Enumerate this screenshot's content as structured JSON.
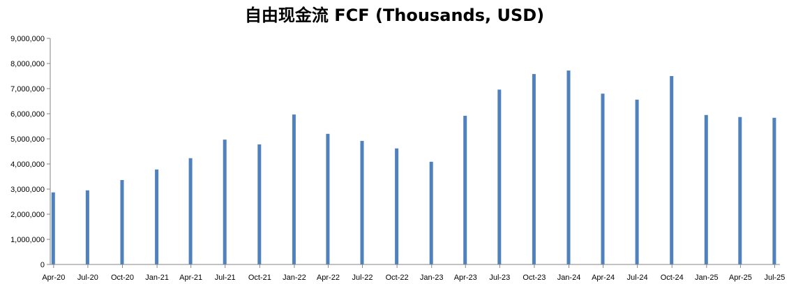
{
  "chart_data": {
    "type": "bar",
    "title": "自由现金流 FCF (Thousands, USD)",
    "xlabel": "",
    "ylabel": "",
    "ylim": [
      0,
      9000000
    ],
    "y_ticks": [
      "0",
      "1,000,000",
      "2,000,000",
      "3,000,000",
      "4,000,000",
      "5,000,000",
      "6,000,000",
      "7,000,000",
      "8,000,000",
      "9,000,000"
    ],
    "x_tick_labels": [
      "Apr-20",
      "Jul-20",
      "Oct-20",
      "Jan-21",
      "Apr-21",
      "Jul-21",
      "Oct-21",
      "Jan-22",
      "Apr-22",
      "Jul-22",
      "Oct-22",
      "Jan-23",
      "Apr-23",
      "Jul-23",
      "Oct-23",
      "Jan-24",
      "Apr-24",
      "Jul-24",
      "Oct-24",
      "Jan-25",
      "Apr-25",
      "Jul-25"
    ],
    "grid": false,
    "legend": "none",
    "color": "#4f81bd",
    "bars": [
      {
        "date": "2020-03-31",
        "value": 2870000
      },
      {
        "date": "2020-06-30",
        "value": 2950000
      },
      {
        "date": "2020-09-30",
        "value": 3360000
      },
      {
        "date": "2020-12-31",
        "value": 3780000
      },
      {
        "date": "2021-03-31",
        "value": 4230000
      },
      {
        "date": "2021-06-30",
        "value": 4970000
      },
      {
        "date": "2021-09-30",
        "value": 4780000
      },
      {
        "date": "2021-12-31",
        "value": 5970000
      },
      {
        "date": "2022-03-31",
        "value": 5200000
      },
      {
        "date": "2022-06-30",
        "value": 4920000
      },
      {
        "date": "2022-09-30",
        "value": 4620000
      },
      {
        "date": "2022-12-31",
        "value": 4090000
      },
      {
        "date": "2023-03-31",
        "value": 5920000
      },
      {
        "date": "2023-06-30",
        "value": 6960000
      },
      {
        "date": "2023-09-30",
        "value": 7580000
      },
      {
        "date": "2023-12-31",
        "value": 7720000
      },
      {
        "date": "2024-03-31",
        "value": 6800000
      },
      {
        "date": "2024-06-30",
        "value": 6560000
      },
      {
        "date": "2024-09-30",
        "value": 7500000
      },
      {
        "date": "2024-12-31",
        "value": 5950000
      },
      {
        "date": "2025-03-31",
        "value": 5870000
      },
      {
        "date": "2025-06-30",
        "value": 5840000
      }
    ]
  }
}
